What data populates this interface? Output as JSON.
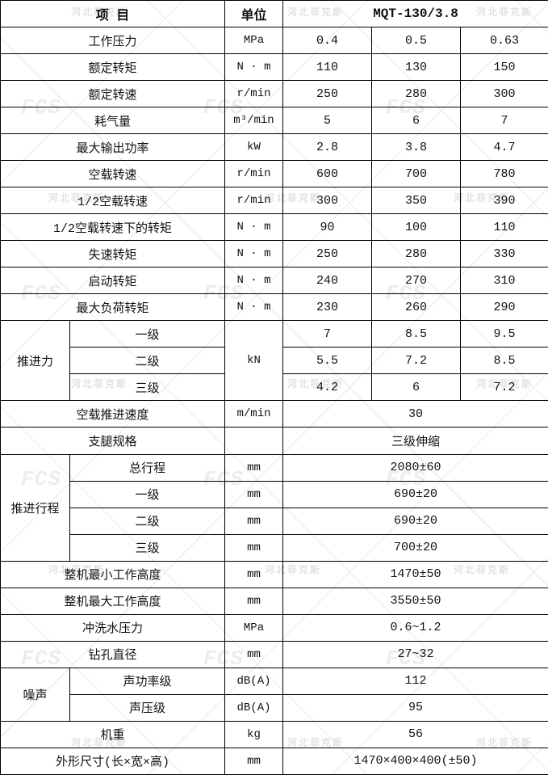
{
  "watermark": {
    "logo": "FCS",
    "text": "河北菲克斯"
  },
  "chart_data": {
    "type": "table",
    "header": {
      "item": "项 目",
      "unit": "单位",
      "model": "MQT-130/3.8"
    },
    "rows": [
      {
        "kind": "simple",
        "label": "工作压力",
        "unit": "MPa",
        "values": [
          "0.4",
          "0.5",
          "0.63"
        ]
      },
      {
        "kind": "simple",
        "label": "额定转矩",
        "unit": "N · m",
        "values": [
          "110",
          "130",
          "150"
        ]
      },
      {
        "kind": "simple",
        "label": "额定转速",
        "unit": "r/min",
        "values": [
          "250",
          "280",
          "300"
        ]
      },
      {
        "kind": "simple",
        "label": "耗气量",
        "unit": "m³/min",
        "values": [
          "5",
          "6",
          "7"
        ]
      },
      {
        "kind": "simple",
        "label": "最大输出功率",
        "unit": "kW",
        "values": [
          "2.8",
          "3.8",
          "4.7"
        ]
      },
      {
        "kind": "simple",
        "label": "空载转速",
        "unit": "r/min",
        "values": [
          "600",
          "700",
          "780"
        ]
      },
      {
        "kind": "simple",
        "label": "1/2空载转速",
        "unit": "r/min",
        "values": [
          "300",
          "350",
          "390"
        ]
      },
      {
        "kind": "simple",
        "label": "1/2空载转速下的转矩",
        "unit": "N · m",
        "values": [
          "90",
          "100",
          "110"
        ]
      },
      {
        "kind": "simple",
        "label": "失速转矩",
        "unit": "N · m",
        "values": [
          "250",
          "280",
          "330"
        ]
      },
      {
        "kind": "simple",
        "label": "启动转矩",
        "unit": "N · m",
        "values": [
          "240",
          "270",
          "310"
        ]
      },
      {
        "kind": "simple",
        "label": "最大负荷转矩",
        "unit": "N · m",
        "values": [
          "230",
          "260",
          "290"
        ]
      },
      {
        "kind": "group",
        "label": "推进力",
        "shared_unit": "kN",
        "rows": [
          {
            "label": "一级",
            "values": [
              "7",
              "8.5",
              "9.5"
            ]
          },
          {
            "label": "二级",
            "values": [
              "5.5",
              "7.2",
              "8.5"
            ]
          },
          {
            "label": "三级",
            "values": [
              "4.2",
              "6",
              "7.2"
            ]
          }
        ]
      },
      {
        "kind": "merged",
        "label": "空载推进速度",
        "unit": "m/min",
        "value": "30"
      },
      {
        "kind": "merged",
        "label": "支腿规格",
        "unit": "",
        "value": "三级伸缩"
      },
      {
        "kind": "group",
        "label": "推进行程",
        "rows": [
          {
            "label": "总行程",
            "unit": "mm",
            "value": "2080±60"
          },
          {
            "label": "一级",
            "unit": "mm",
            "value": "690±20"
          },
          {
            "label": "二级",
            "unit": "mm",
            "value": "690±20"
          },
          {
            "label": "三级",
            "unit": "mm",
            "value": "700±20"
          }
        ]
      },
      {
        "kind": "merged",
        "label": "整机最小工作高度",
        "unit": "mm",
        "value": "1470±50"
      },
      {
        "kind": "merged",
        "label": "整机最大工作高度",
        "unit": "mm",
        "value": "3550±50"
      },
      {
        "kind": "merged",
        "label": "冲洗水压力",
        "unit": "MPa",
        "value": "0.6~1.2"
      },
      {
        "kind": "merged",
        "label": "钻孔直径",
        "unit": "mm",
        "value": "27~32"
      },
      {
        "kind": "group",
        "label": "噪声",
        "rows": [
          {
            "label": "声功率级",
            "unit": "dB(A)",
            "value": "112"
          },
          {
            "label": "声压级",
            "unit": "dB(A)",
            "value": "95"
          }
        ]
      },
      {
        "kind": "merged",
        "label": "机重",
        "unit": "kg",
        "value": "56"
      },
      {
        "kind": "merged",
        "label": "外形尺寸(长×宽×高)",
        "unit": "mm",
        "value": "1470×400×400(±50)"
      }
    ]
  }
}
